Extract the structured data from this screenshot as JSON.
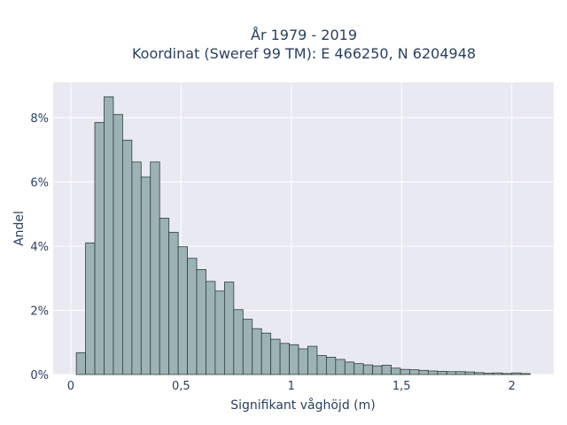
{
  "chart_data": {
    "type": "bar",
    "title": "År 1979 - 2019",
    "subtitle": "Koordinat (Sweref 99 TM): E 466250, N 6204948",
    "xlabel": "Signifikant våghöjd (m)",
    "ylabel": "Andel",
    "bin_width": 0.042,
    "bin_start": 0.025,
    "values": [
      0.68,
      4.1,
      7.85,
      8.65,
      8.1,
      7.3,
      6.62,
      6.15,
      6.62,
      4.87,
      4.43,
      3.98,
      3.62,
      3.27,
      2.9,
      2.6,
      2.88,
      2.02,
      1.72,
      1.43,
      1.29,
      1.1,
      0.97,
      0.93,
      0.8,
      0.88,
      0.59,
      0.54,
      0.47,
      0.39,
      0.34,
      0.3,
      0.27,
      0.29,
      0.2,
      0.16,
      0.15,
      0.13,
      0.11,
      0.1,
      0.09,
      0.09,
      0.08,
      0.06,
      0.04,
      0.05,
      0.03,
      0.05,
      0.03
    ],
    "xlim": [
      -0.08,
      2.19
    ],
    "ylim": [
      0,
      9.1
    ],
    "xticks": [
      0,
      0.5,
      1,
      1.5,
      2
    ],
    "xtick_labels": [
      "0",
      "0,5",
      "1",
      "1,5",
      "2"
    ],
    "yticks": [
      0,
      2,
      4,
      6,
      8
    ],
    "ytick_labels": [
      "0%",
      "2%",
      "4%",
      "6%",
      "8%"
    ],
    "grid": true,
    "colors": {
      "plot_bg": "#e9e9f2",
      "bar_fill": "#9db3b3",
      "bar_edge": "#2f3e3e",
      "text": "#2a3f5f"
    }
  }
}
